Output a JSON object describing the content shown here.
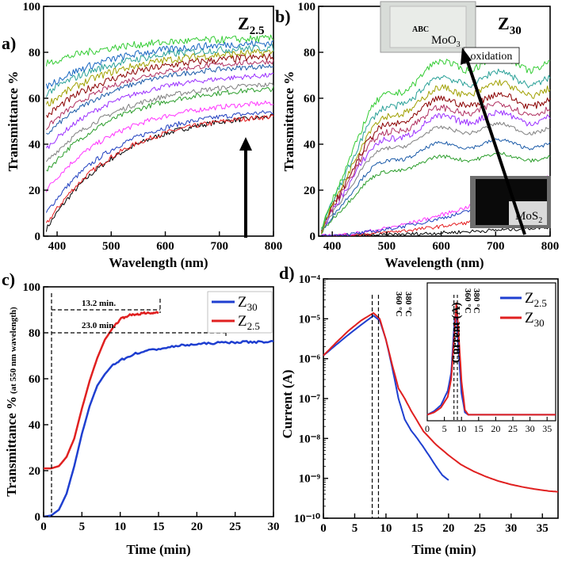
{
  "chart_data": [
    {
      "panel": "a",
      "type": "line",
      "title": "Z2.5",
      "xlabel": "Wavelength (nm)",
      "ylabel": "Transmittance %",
      "xlim": [
        375,
        800
      ],
      "ylim": [
        0,
        100
      ],
      "xticks": [
        400,
        500,
        600,
        700,
        800
      ],
      "yticks": [
        0,
        20,
        40,
        60,
        80,
        100
      ],
      "series_colors": [
        "#000000",
        "#e41a1c",
        "#1f3fbf",
        "#ff33ff",
        "#2a9d2a",
        "#7f7f7f",
        "#9b30ff",
        "#1a5aa8",
        "#b03060",
        "#8b0000",
        "#a0a000",
        "#2aa198",
        "#1565c0",
        "#33cc33"
      ],
      "series_start": [
        3,
        5,
        10,
        20,
        28,
        32,
        38,
        44,
        47,
        52,
        57,
        62,
        65,
        75
      ],
      "series_end": [
        52,
        52,
        54,
        58,
        64,
        66,
        70,
        74,
        76,
        78,
        80,
        82,
        84,
        86
      ],
      "annotation": "arrow pointing up at 750 nm (increasing deposition time)"
    },
    {
      "panel": "b",
      "type": "line",
      "title": "Z30",
      "xlabel": "Wavelength (nm)",
      "ylabel": "Transmittance %",
      "xlim": [
        375,
        800
      ],
      "ylim": [
        0,
        100
      ],
      "xticks": [
        400,
        500,
        600,
        700,
        800
      ],
      "yticks": [
        0,
        20,
        40,
        60,
        80,
        100
      ],
      "series_colors": [
        "#000000",
        "#e41a1c",
        "#ff33ff",
        "#1f3fbf",
        "#2a9d2a",
        "#1a5aa8",
        "#7f7f7f",
        "#9b30ff",
        "#b03060",
        "#8b0000",
        "#a0a000",
        "#2aa198",
        "#33cc33"
      ],
      "series_peak": [
        4,
        12,
        26,
        22,
        36,
        42,
        49,
        54,
        58,
        62,
        67,
        72,
        79
      ],
      "inset_top_label": "ABC",
      "inset_top_material": "MoO3",
      "inset_bottom_material": "MoS2",
      "arrow_label": "oxidation"
    },
    {
      "panel": "c",
      "type": "line",
      "xlabel": "Time (min)",
      "ylabel": "Transmittance %",
      "ylabel_sub": "(at 550 nm wavelength)",
      "xlim": [
        0,
        30
      ],
      "ylim": [
        0,
        100
      ],
      "xticks": [
        0,
        5,
        10,
        15,
        20,
        25,
        30
      ],
      "yticks": [
        0,
        20,
        40,
        60,
        80,
        100
      ],
      "series": [
        {
          "name": "Z30",
          "color": "#1f3fd0",
          "x": [
            0,
            1,
            2,
            3,
            4,
            5,
            6,
            7,
            8,
            9,
            10,
            12,
            14,
            16,
            18,
            20,
            22,
            24,
            26,
            28,
            30
          ],
          "y": [
            0,
            0.5,
            3,
            10,
            22,
            36,
            48,
            57,
            62,
            66,
            68,
            71,
            72.5,
            73.5,
            74.5,
            75,
            75.5,
            75.8,
            76,
            76,
            76.2
          ]
        },
        {
          "name": "Z2.5",
          "color": "#e02020",
          "x": [
            0,
            1,
            2,
            3,
            4,
            5,
            6,
            7,
            8,
            9,
            10,
            11,
            12,
            13,
            14,
            15
          ],
          "y": [
            21,
            21,
            22,
            26,
            34,
            47,
            59,
            69,
            77,
            82,
            86,
            87.5,
            88,
            88.5,
            88.5,
            89
          ]
        }
      ],
      "annotations": [
        "13.2 min.",
        "23.0 min."
      ]
    },
    {
      "panel": "d",
      "type": "line",
      "yscale": "log",
      "xlabel": "Time (min)",
      "ylabel": "Current (A)",
      "xlim": [
        0,
        37.5
      ],
      "xticks": [
        0,
        5,
        10,
        15,
        20,
        25,
        30,
        35
      ],
      "yexp": [
        -10,
        -9,
        -8,
        -7,
        -6,
        -5,
        -4
      ],
      "ytick_labels": [
        "10⁻¹⁰",
        "10⁻⁹",
        "10⁻⁸",
        "10⁻⁷",
        "10⁻⁶",
        "10⁻⁵",
        "10⁻⁴"
      ],
      "temp_marks": [
        "360 °C",
        "380 °C"
      ],
      "series": [
        {
          "name": "Z2.5",
          "color": "#1f3fd0",
          "x": [
            0,
            2,
            4,
            6,
            8,
            9,
            10,
            11,
            12,
            13,
            14,
            15,
            16,
            17,
            18,
            19,
            20
          ],
          "y": [
            1.2e-06,
            2.2e-06,
            4e-06,
            7e-06,
            1.2e-05,
            9e-06,
            3e-06,
            6e-07,
            1e-07,
            3e-08,
            1.6e-08,
            1e-08,
            6e-09,
            3.5e-09,
            2e-09,
            1.2e-09,
            9e-10
          ]
        },
        {
          "name": "Z30",
          "color": "#e02020",
          "x": [
            0,
            2,
            4,
            6,
            8,
            9,
            10,
            11,
            12,
            13,
            14,
            16,
            18,
            20,
            22,
            24,
            26,
            28,
            30,
            32,
            34,
            36,
            37.5
          ],
          "y": [
            1.2e-06,
            2.5e-06,
            5e-06,
            9e-06,
            1.4e-05,
            1e-05,
            3e-06,
            7e-07,
            1.8e-07,
            1e-07,
            5e-08,
            1.5e-08,
            7e-09,
            3.8e-09,
            2.2e-09,
            1.5e-09,
            1.1e-09,
            8.5e-10,
            7e-10,
            6e-10,
            5.3e-10,
            4.8e-10,
            4.6e-10
          ]
        }
      ],
      "inset": {
        "ylabel": "Current (A)",
        "xlim": [
          0,
          37.5
        ],
        "xticks": [
          0,
          5,
          10,
          15,
          20,
          25,
          30,
          35
        ],
        "temp_marks": [
          "360 °C",
          "380 °C"
        ],
        "series": [
          {
            "name": "Z2.5",
            "color": "#1f3fd0",
            "x": [
              0,
              2,
              4,
              6,
              7,
              8,
              8.5,
              9,
              10,
              11,
              12,
              37.5
            ],
            "y": [
              0,
              0.03,
              0.08,
              0.2,
              0.35,
              0.8,
              0.85,
              0.6,
              0.18,
              0.02,
              0,
              0
            ]
          },
          {
            "name": "Z30",
            "color": "#e02020",
            "x": [
              0,
              2,
              4,
              6,
              7,
              8,
              8.5,
              9,
              10,
              11,
              12,
              37.5
            ],
            "y": [
              0,
              0.02,
              0.06,
              0.15,
              0.3,
              0.7,
              0.93,
              0.75,
              0.28,
              0.04,
              0,
              0
            ]
          }
        ]
      }
    }
  ],
  "labels": {
    "panel_a": "a)",
    "panel_b": "b)",
    "panel_c": "c)",
    "panel_d": "d)",
    "a_title_main": "Z",
    "a_title_sub": "2.5",
    "b_title_main": "Z",
    "b_title_sub": "30",
    "legend_c_z30_main": "Z",
    "legend_c_z30_sub": "30",
    "legend_c_z25_main": "Z",
    "legend_c_z25_sub": "2.5",
    "legend_d_z25_main": "Z",
    "legend_d_z25_sub": "2.5",
    "legend_d_z30_main": "Z",
    "legend_d_z30_sub": "30",
    "moo3_main": "MoO",
    "moo3_sub": "3",
    "mos2_main": "MoS",
    "mos2_sub": "2",
    "transmittance": "Transmittance %",
    "transmittance_sub": "(at 550 nm wavelength)",
    "wavelength": "Wavelength (nm)",
    "time": "Time (min)",
    "current": "Current (A)",
    "oxidation": "oxidation",
    "abc": "ABC",
    "ann_132": "13.2 min.",
    "ann_230": "23.0 min.",
    "t360": "360 °C",
    "t380": "380 °C"
  }
}
